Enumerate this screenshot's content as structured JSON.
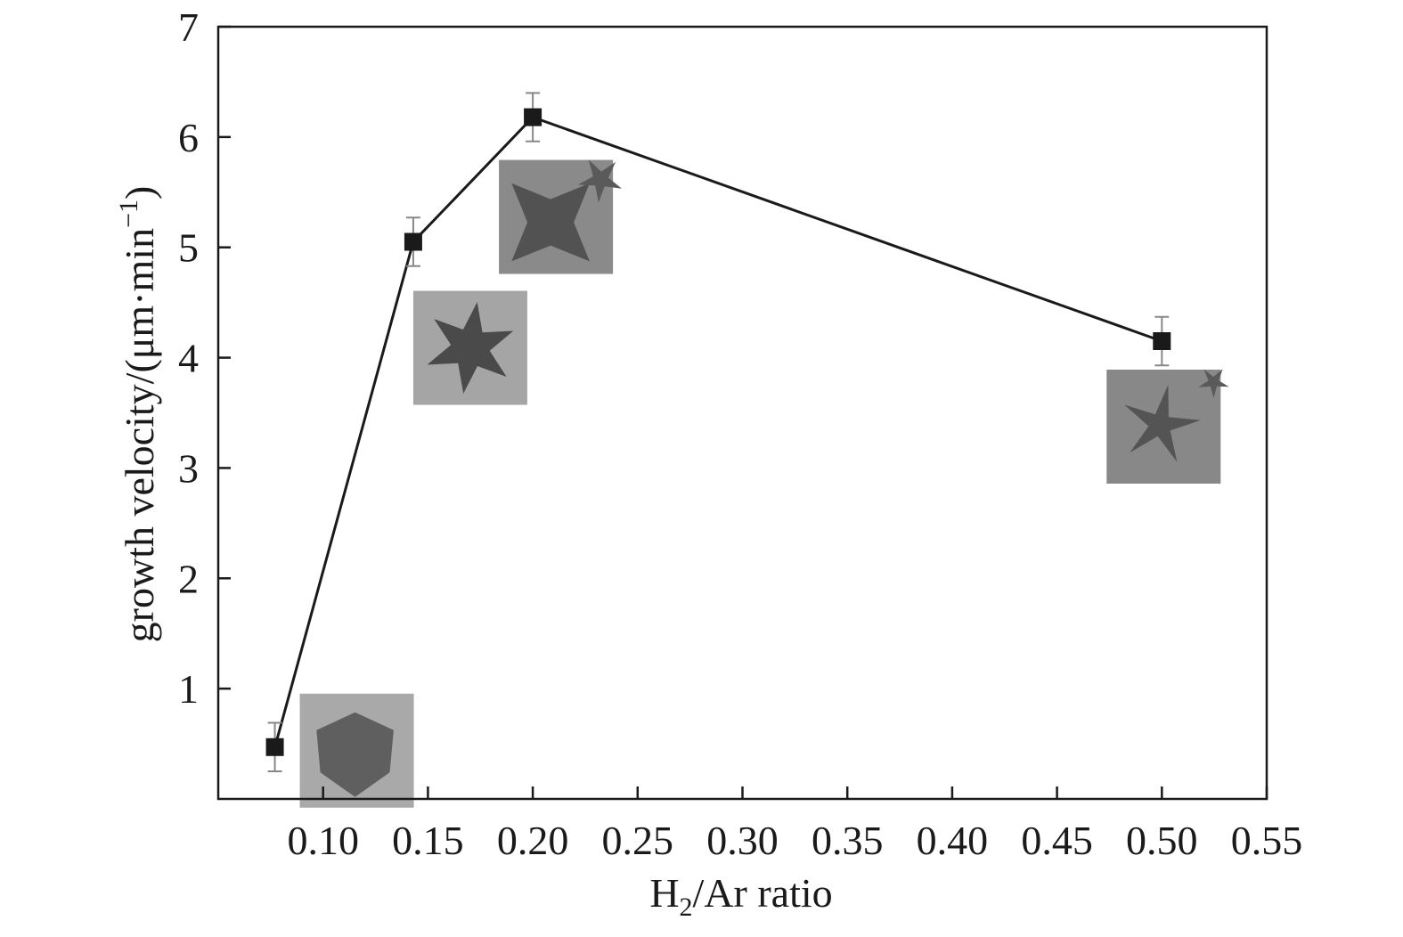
{
  "chart_data": {
    "type": "line",
    "xlabel": {
      "main": "H",
      "sub": "2",
      "rest": "/Ar ratio"
    },
    "ylabel": {
      "main": "growth velocity/(μm·min",
      "sup": "−1",
      "close": ")"
    },
    "xlim": [
      0.05,
      0.55
    ],
    "ylim": [
      0,
      7
    ],
    "xticks": [
      0.1,
      0.15,
      0.2,
      0.25,
      0.3,
      0.35,
      0.4,
      0.45,
      0.5,
      0.55
    ],
    "xtick_labels": [
      "0.10",
      "0.15",
      "0.20",
      "0.25",
      "0.30",
      "0.35",
      "0.40",
      "0.45",
      "0.50",
      "0.55"
    ],
    "yticks": [
      1,
      2,
      3,
      4,
      5,
      6,
      7
    ],
    "ytick_labels": [
      "1",
      "2",
      "3",
      "4",
      "5",
      "6",
      "7"
    ],
    "grid": false,
    "series": [
      {
        "x": [
          0.077,
          0.143,
          0.2,
          0.5
        ],
        "y": [
          0.47,
          5.05,
          6.18,
          4.15
        ],
        "error": [
          0.22,
          0.22,
          0.22,
          0.22
        ],
        "color": "#1a1a1a",
        "marker": "square"
      }
    ],
    "insets": [
      {
        "x": 0.077,
        "y": 0.47,
        "shape": "hexagon"
      },
      {
        "x": 0.143,
        "y": 5.05,
        "shape": "six-point-star"
      },
      {
        "x": 0.2,
        "y": 6.18,
        "shape": "dendritic-star"
      },
      {
        "x": 0.5,
        "y": 4.15,
        "shape": "dendritic-star-small"
      }
    ]
  }
}
